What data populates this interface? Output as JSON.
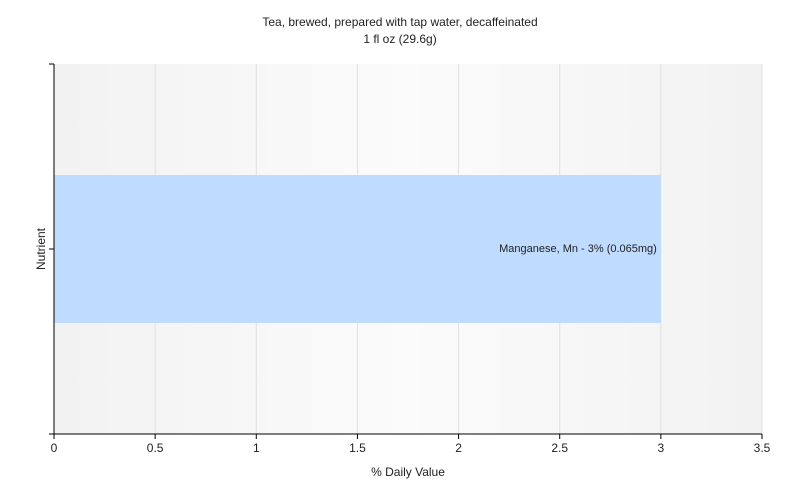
{
  "chart_data": {
    "type": "hbar",
    "title": "Tea, brewed, prepared with tap water, decaffeinated",
    "subtitle": "1 fl oz (29.6g)",
    "x_label": "% Daily Value",
    "y_label": "Nutrient",
    "categories": [
      null
    ],
    "values": [
      3
    ],
    "value_labels": [
      "Manganese, Mn - 3% (0.065mg)"
    ],
    "color": "#bfdbff",
    "xlim": [
      0,
      3.5
    ],
    "xticks": [
      0,
      0.5,
      1,
      1.5,
      2,
      2.5,
      3,
      3.5
    ],
    "grid": true
  }
}
